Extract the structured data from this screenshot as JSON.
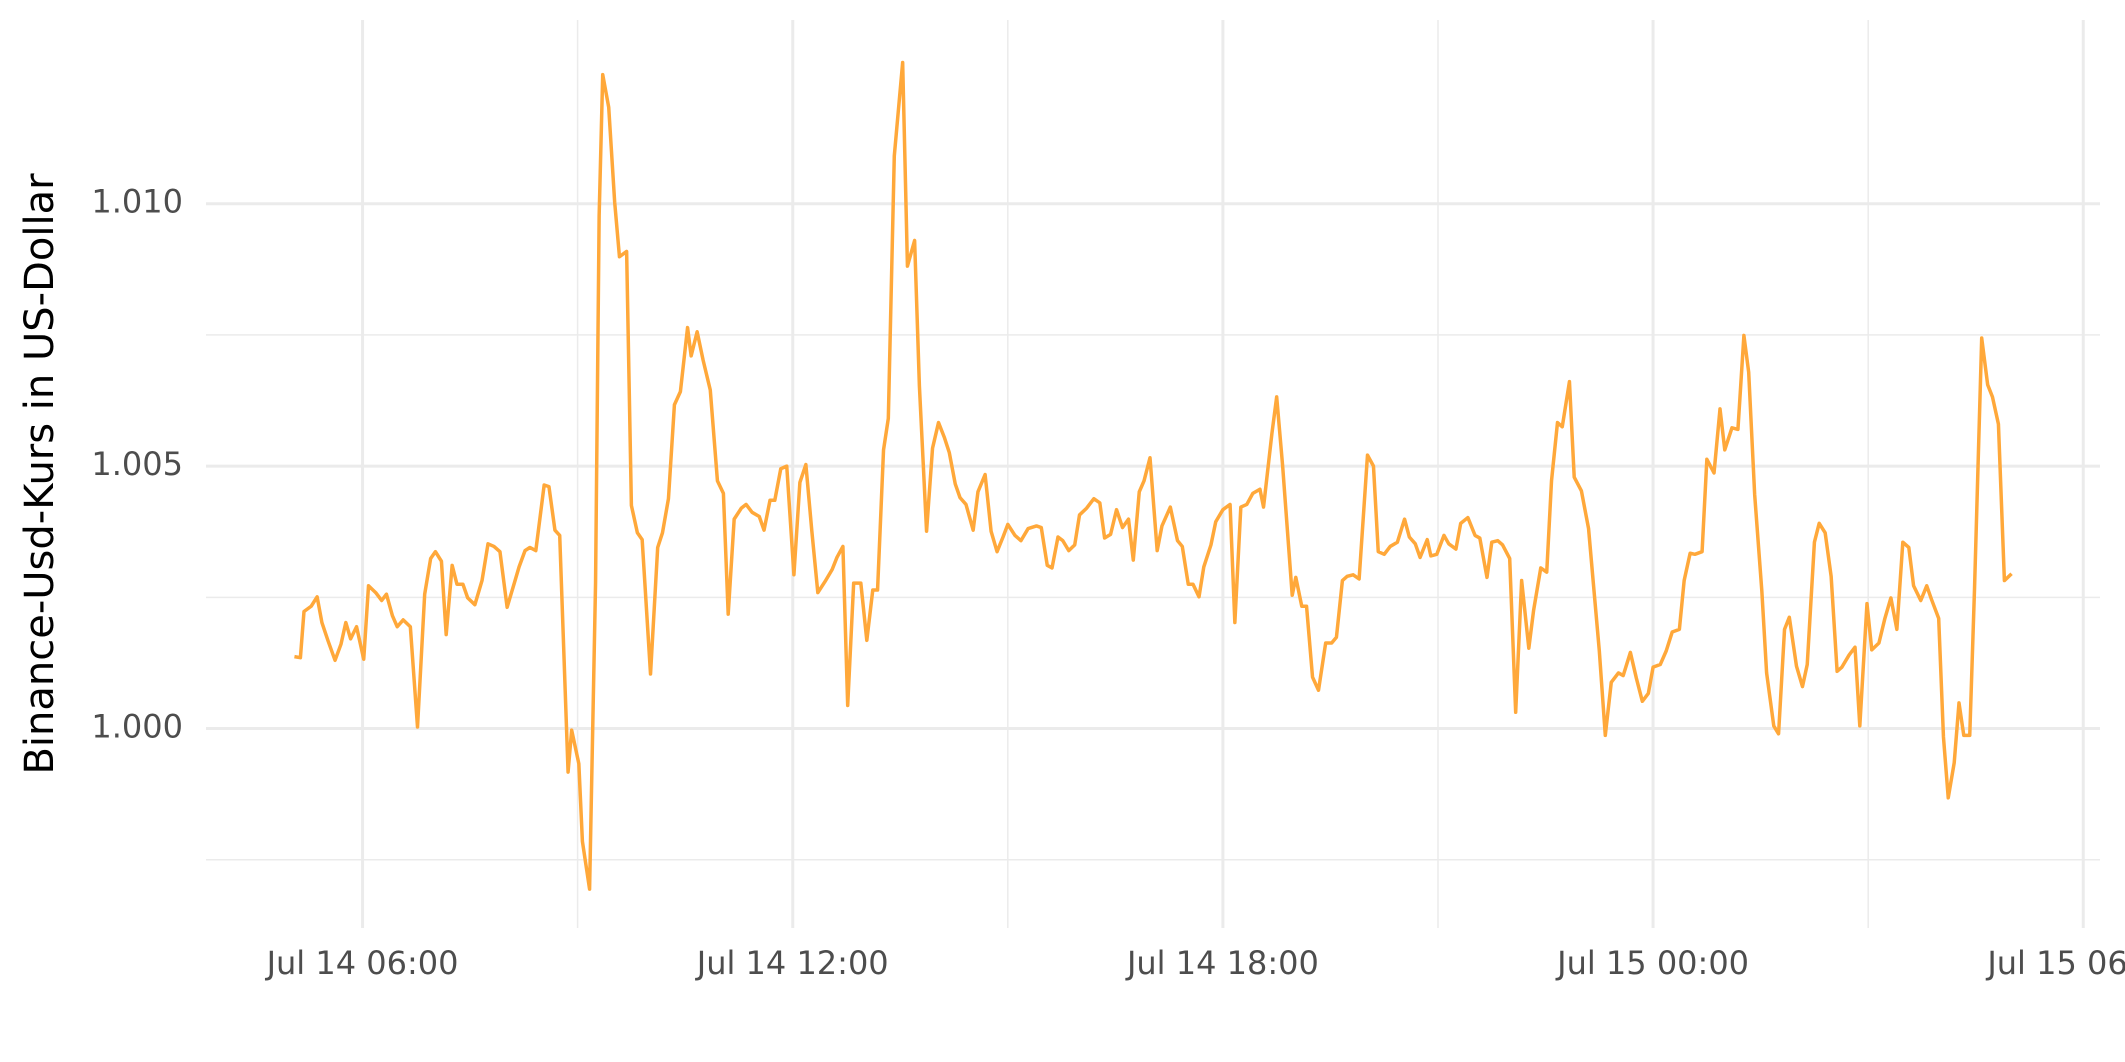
{
  "chart_data": {
    "type": "line",
    "y_label": "Binance-Usd-Kurs in US-Dollar",
    "color": "#ffa83a",
    "grid": true,
    "xlim": [
      "Jul 14 03:49",
      "Jul 15 06:14"
    ],
    "xticks": [
      "Jul 14 06:00",
      "Jul 14 12:00",
      "Jul 14 18:00",
      "Jul 15 00:00",
      "Jul 15 06:00"
    ],
    "xminor": [
      "Jul 14 09:00",
      "Jul 14 15:00",
      "Jul 14 21:00",
      "Jul 15 03:00"
    ],
    "ylim": [
      0.9962,
      1.0135
    ],
    "yticks": [
      {
        "value": 1,
        "label": "1.000"
      },
      {
        "value": 1.005,
        "label": "1.005"
      },
      {
        "value": 1.01,
        "label": "1.010"
      }
    ],
    "yminor": [
      0.9975,
      1.0025,
      1.0075
    ],
    "x": [
      "Jul 14 05:03",
      "Jul 14 05:08",
      "Jul 14 05:11",
      "Jul 14 05:17",
      "Jul 14 05:22",
      "Jul 14 05:26",
      "Jul 14 05:31",
      "Jul 14 05:37",
      "Jul 14 05:42",
      "Jul 14 05:46",
      "Jul 14 05:50",
      "Jul 14 05:55",
      "Jul 14 06:01",
      "Jul 14 06:05",
      "Jul 14 06:11",
      "Jul 14 06:16",
      "Jul 14 06:20",
      "Jul 14 06:25",
      "Jul 14 06:29",
      "Jul 14 06:34",
      "Jul 14 06:40",
      "Jul 14 06:46",
      "Jul 14 06:52",
      "Jul 14 06:57",
      "Jul 14 07:01",
      "Jul 14 07:06",
      "Jul 14 07:10",
      "Jul 14 07:15",
      "Jul 14 07:19",
      "Jul 14 07:24",
      "Jul 14 07:28",
      "Jul 14 07:34",
      "Jul 14 07:40",
      "Jul 14 07:45",
      "Jul 14 07:50",
      "Jul 14 07:55",
      "Jul 14 08:01",
      "Jul 14 08:07",
      "Jul 14 08:11",
      "Jul 14 08:16",
      "Jul 14 08:20",
      "Jul 14 08:25",
      "Jul 14 08:32",
      "Jul 14 08:36",
      "Jul 14 08:41",
      "Jul 14 08:45",
      "Jul 14 08:52",
      "Jul 14 08:55",
      "Jul 14 09:01",
      "Jul 14 09:04",
      "Jul 14 09:10",
      "Jul 14 09:15",
      "Jul 14 09:18",
      "Jul 14 09:21",
      "Jul 14 09:26",
      "Jul 14 09:31",
      "Jul 14 09:35",
      "Jul 14 09:41",
      "Jul 14 09:45",
      "Jul 14 09:50",
      "Jul 14 09:54",
      "Jul 14 10:01",
      "Jul 14 10:07",
      "Jul 14 10:11",
      "Jul 14 10:16",
      "Jul 14 10:21",
      "Jul 14 10:26",
      "Jul 14 10:32",
      "Jul 14 10:35",
      "Jul 14 10:40",
      "Jul 14 10:45",
      "Jul 14 10:51",
      "Jul 14 10:57",
      "Jul 14 11:02",
      "Jul 14 11:06",
      "Jul 14 11:11",
      "Jul 14 11:17",
      "Jul 14 11:21",
      "Jul 14 11:26",
      "Jul 14 11:32",
      "Jul 14 11:36",
      "Jul 14 11:41",
      "Jul 14 11:45",
      "Jul 14 11:50",
      "Jul 14 11:55",
      "Jul 14 12:01",
      "Jul 14 12:06",
      "Jul 14 12:11",
      "Jul 14 12:16",
      "Jul 14 12:21",
      "Jul 14 12:27",
      "Jul 14 12:33",
      "Jul 14 12:37",
      "Jul 14 12:42",
      "Jul 14 12:46",
      "Jul 14 12:51",
      "Jul 14 12:57",
      "Jul 14 13:02",
      "Jul 14 13:07",
      "Jul 14 13:11",
      "Jul 14 13:16",
      "Jul 14 13:20",
      "Jul 14 13:25",
      "Jul 14 13:32",
      "Jul 14 13:36",
      "Jul 14 13:42",
      "Jul 14 13:46",
      "Jul 14 13:52",
      "Jul 14 13:57",
      "Jul 14 14:02",
      "Jul 14 14:07",
      "Jul 14 14:11",
      "Jul 14 14:16",
      "Jul 14 14:20",
      "Jul 14 14:25",
      "Jul 14 14:31",
      "Jul 14 14:35",
      "Jul 14 14:41",
      "Jul 14 14:46",
      "Jul 14 14:51",
      "Jul 14 14:56",
      "Jul 14 15:00",
      "Jul 14 15:06",
      "Jul 14 15:11",
      "Jul 14 15:17",
      "Jul 14 15:24",
      "Jul 14 15:28",
      "Jul 14 15:33",
      "Jul 14 15:37",
      "Jul 14 15:42",
      "Jul 14 15:46",
      "Jul 14 15:51",
      "Jul 14 15:56",
      "Jul 14 16:00",
      "Jul 14 16:06",
      "Jul 14 16:12",
      "Jul 14 16:17",
      "Jul 14 16:21",
      "Jul 14 16:26",
      "Jul 14 16:31",
      "Jul 14 16:36",
      "Jul 14 16:41",
      "Jul 14 16:45",
      "Jul 14 16:50",
      "Jul 14 16:54",
      "Jul 14 16:59",
      "Jul 14 17:05",
      "Jul 14 17:09",
      "Jul 14 17:16",
      "Jul 14 17:22",
      "Jul 14 17:26",
      "Jul 14 17:31",
      "Jul 14 17:35",
      "Jul 14 17:40",
      "Jul 14 17:44",
      "Jul 14 17:50",
      "Jul 14 17:54",
      "Jul 14 18:00",
      "Jul 14 18:06",
      "Jul 14 18:10",
      "Jul 14 18:15",
      "Jul 14 18:20",
      "Jul 14 18:25",
      "Jul 14 18:31",
      "Jul 14 18:34",
      "Jul 14 18:41",
      "Jul 14 18:45",
      "Jul 14 18:50",
      "Jul 14 18:58",
      "Jul 14 19:01",
      "Jul 14 19:06",
      "Jul 14 19:10",
      "Jul 14 19:15",
      "Jul 14 19:20",
      "Jul 14 19:26",
      "Jul 14 19:31",
      "Jul 14 19:35",
      "Jul 14 19:40",
      "Jul 14 19:44",
      "Jul 14 19:49",
      "Jul 14 19:54",
      "Jul 14 20:01",
      "Jul 14 20:06",
      "Jul 14 20:10",
      "Jul 14 20:15",
      "Jul 14 20:20",
      "Jul 14 20:26",
      "Jul 14 20:32",
      "Jul 14 20:36",
      "Jul 14 20:41",
      "Jul 14 20:45",
      "Jul 14 20:51",
      "Jul 14 20:54",
      "Jul 14 20:59",
      "Jul 14 21:05",
      "Jul 14 21:09",
      "Jul 14 21:15",
      "Jul 14 21:19",
      "Jul 14 21:25",
      "Jul 14 21:31",
      "Jul 14 21:35",
      "Jul 14 21:41",
      "Jul 14 21:45",
      "Jul 14 21:50",
      "Jul 14 21:54",
      "Jul 14 22:00",
      "Jul 14 22:05",
      "Jul 14 22:10",
      "Jul 14 22:16",
      "Jul 14 22:20",
      "Jul 14 22:26",
      "Jul 14 22:31",
      "Jul 14 22:35",
      "Jul 14 22:40",
      "Jul 14 22:44",
      "Jul 14 22:50",
      "Jul 14 22:54",
      "Jul 14 23:00",
      "Jul 14 23:06",
      "Jul 14 23:10",
      "Jul 14 23:15",
      "Jul 14 23:20",
      "Jul 14 23:25",
      "Jul 14 23:31",
      "Jul 14 23:35",
      "Jul 14 23:41",
      "Jul 14 23:46",
      "Jul 14 23:51",
      "Jul 14 23:56",
      "Jul 15 00:00",
      "Jul 15 00:06",
      "Jul 15 00:11",
      "Jul 15 00:16",
      "Jul 15 00:22",
      "Jul 15 00:26",
      "Jul 15 00:31",
      "Jul 15 00:35",
      "Jul 15 00:41",
      "Jul 15 00:45",
      "Jul 15 00:51",
      "Jul 15 00:56",
      "Jul 15 01:00",
      "Jul 15 01:06",
      "Jul 15 01:11",
      "Jul 15 01:16",
      "Jul 15 01:20",
      "Jul 15 01:25",
      "Jul 15 01:31",
      "Jul 15 01:35",
      "Jul 15 01:41",
      "Jul 15 01:45",
      "Jul 15 01:50",
      "Jul 15 01:54",
      "Jul 15 02:00",
      "Jul 15 02:05",
      "Jul 15 02:09",
      "Jul 15 02:15",
      "Jul 15 02:19",
      "Jul 15 02:24",
      "Jul 15 02:29",
      "Jul 15 02:34",
      "Jul 15 02:38",
      "Jul 15 02:44",
      "Jul 15 02:49",
      "Jul 15 02:53",
      "Jul 15 02:59",
      "Jul 15 03:03",
      "Jul 15 03:09",
      "Jul 15 03:14",
      "Jul 15 03:19",
      "Jul 15 03:24",
      "Jul 15 03:29",
      "Jul 15 03:34",
      "Jul 15 03:38",
      "Jul 15 03:44",
      "Jul 15 03:49",
      "Jul 15 03:53",
      "Jul 15 03:59",
      "Jul 15 04:03",
      "Jul 15 04:07",
      "Jul 15 04:12",
      "Jul 15 04:16",
      "Jul 15 04:20",
      "Jul 15 04:25",
      "Jul 15 04:29",
      "Jul 15 04:35",
      "Jul 15 04:40",
      "Jul 15 04:44",
      "Jul 15 04:49",
      "Jul 15 04:54",
      "Jul 15 05:00"
    ],
    "values": [
      1.00137,
      1.00135,
      1.00223,
      1.00233,
      1.00251,
      1.00202,
      1.00168,
      1.0013,
      1.00161,
      1.00202,
      1.00171,
      1.00194,
      1.00132,
      1.00272,
      1.00259,
      1.00244,
      1.00256,
      1.00215,
      1.00194,
      1.00207,
      1.00194,
      1.00003,
      1.00256,
      1.00324,
      1.00337,
      1.00319,
      1.00179,
      1.00311,
      1.00275,
      1.00275,
      1.00249,
      1.00236,
      1.00282,
      1.00352,
      1.00347,
      1.00337,
      1.00231,
      1.00277,
      1.00308,
      1.00339,
      1.00345,
      1.00339,
      1.00464,
      1.00461,
      1.00378,
      1.00368,
      0.99917,
      0.99997,
      0.99933,
      0.99785,
      0.99694,
      1.00277,
      1.00977,
      1.01246,
      1.01184,
      1.01003,
      1.00899,
      1.00909,
      1.00425,
      1.00373,
      1.0036,
      1.00104,
      1.00345,
      1.00373,
      1.00438,
      1.00617,
      1.00642,
      1.00764,
      1.0071,
      1.00756,
      1.00702,
      1.00645,
      1.00472,
      1.00448,
      1.00218,
      1.00399,
      1.0042,
      1.00427,
      1.00412,
      1.00404,
      1.00378,
      1.00435,
      1.00435,
      1.00495,
      1.005,
      1.00293,
      1.00469,
      1.00503,
      1.00376,
      1.00259,
      1.0028,
      1.00303,
      1.00326,
      1.00347,
      1.00044,
      1.00277,
      1.00277,
      1.00168,
      1.00264,
      1.00264,
      1.00531,
      1.00591,
      1.01091,
      1.01269,
      1.00881,
      1.0093,
      1.00653,
      1.00376,
      1.00534,
      1.00583,
      1.00554,
      1.00526,
      1.00466,
      1.0044,
      1.00427,
      1.00378,
      1.00451,
      1.00484,
      1.00376,
      1.00337,
      1.00365,
      1.00389,
      1.00368,
      1.00358,
      1.00381,
      1.00386,
      1.00383,
      1.00311,
      1.00306,
      1.00365,
      1.00358,
      1.00339,
      1.0035,
      1.00407,
      1.0042,
      1.00438,
      1.0043,
      1.00363,
      1.0037,
      1.00417,
      1.00383,
      1.00399,
      1.00321,
      1.00451,
      1.00472,
      1.00516,
      1.00339,
      1.00386,
      1.00422,
      1.00358,
      1.00347,
      1.00275,
      1.00275,
      1.00251,
      1.00308,
      1.0035,
      1.00394,
      1.00417,
      1.00427,
      1.00202,
      1.00422,
      1.00427,
      1.00448,
      1.00456,
      1.00422,
      1.00562,
      1.00632,
      1.005,
      1.00254,
      1.00288,
      1.00233,
      1.00233,
      1.00098,
      1.00073,
      1.00163,
      1.00163,
      1.00174,
      1.00282,
      1.0029,
      1.00293,
      1.00285,
      1.00521,
      1.005,
      1.00337,
      1.00332,
      1.00347,
      1.00355,
      1.00399,
      1.00365,
      1.00352,
      1.00326,
      1.0036,
      1.00329,
      1.00332,
      1.00368,
      1.00352,
      1.00342,
      1.00391,
      1.00402,
      1.00368,
      1.00363,
      1.00288,
      1.00355,
      1.00358,
      1.0035,
      1.00324,
      1.00031,
      1.00282,
      1.00153,
      1.00225,
      1.00306,
      1.00298,
      1.00472,
      1.00583,
      1.00575,
      1.00661,
      1.00479,
      1.00453,
      1.00381,
      1.00277,
      1.00148,
      0.99987,
      1.00088,
      1.00106,
      1.00101,
      1.00145,
      1.00096,
      1.00052,
      1.00067,
      1.00117,
      1.00122,
      1.00148,
      1.00184,
      1.00189,
      1.00282,
      1.00334,
      1.00332,
      1.00337,
      1.00513,
      1.00487,
      1.00609,
      1.00531,
      1.00573,
      1.0057,
      1.00749,
      1.00679,
      1.00446,
      1.00262,
      1.00106,
      1.00005,
      0.9999,
      1.00189,
      1.00212,
      1.00119,
      1.0008,
      1.00122,
      1.00355,
      1.00391,
      1.00373,
      1.0029,
      1.00109,
      1.00117,
      1.0014,
      1.00155,
      1.00005,
      1.00238,
      1.0015,
      1.00163,
      1.0021,
      1.00249,
      1.00189,
      1.00355,
      1.00345,
      1.00272,
      1.00244,
      1.00272,
      1.00246,
      1.0021,
      0.99984,
      0.99868,
      0.99935,
      1.00049,
      0.99987,
      0.99987,
      1.00267,
      1.00744,
      1.00655,
      1.00632,
      1.0058,
      1.00282,
      1.00295
    ]
  }
}
